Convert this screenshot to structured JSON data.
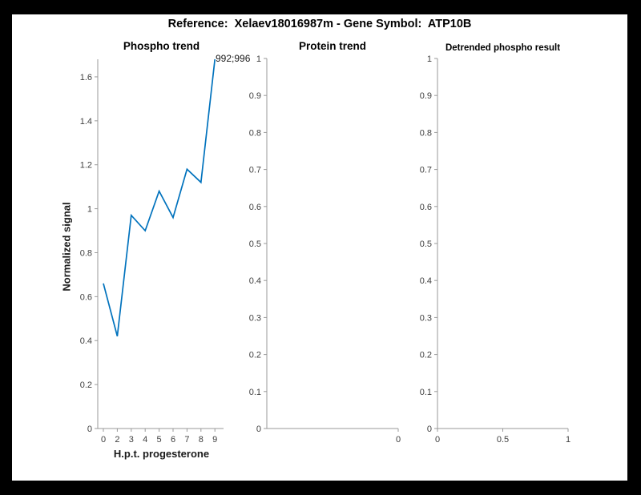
{
  "figure_title": "Reference:  Xelaev18016987m - Gene Symbol:  ATP10B",
  "colors": {
    "line_blue": "#0072BD",
    "axis_gray": "#999999",
    "tick_text_gray": "#3f3f3f",
    "frame_black": "#000000",
    "figure_background": "#ffffff"
  },
  "chart_data": [
    {
      "type": "line",
      "title": "Phospho trend",
      "xlabel": "H.p.t. progesterone",
      "ylabel": "Normalized signal",
      "categories": [
        "0",
        "2",
        "3",
        "4",
        "5",
        "6",
        "7",
        "8",
        "9"
      ],
      "x_tick_labels": [
        "0",
        "2",
        "3",
        "4",
        "5",
        "6",
        "7",
        "8",
        "9"
      ],
      "values": [
        0.66,
        0.42,
        0.97,
        0.9,
        1.08,
        0.96,
        1.18,
        1.12,
        1.68
      ],
      "y_ticks": [
        0,
        0.2,
        0.4,
        0.6,
        0.8,
        1,
        1.2,
        1.4,
        1.6
      ],
      "y_tick_labels": [
        "0",
        "0.2",
        "0.4",
        "0.6",
        "0.8",
        "1",
        "1.2",
        "1.4",
        "1.6"
      ],
      "ylim": [
        0,
        1.68
      ],
      "annotation": "992;996",
      "line_color": "#0072BD",
      "grid": false,
      "legend": "none"
    },
    {
      "type": "line",
      "title": "Protein trend",
      "xlabel": "",
      "ylabel": "",
      "x_tick_labels": [
        "0"
      ],
      "values": [],
      "y_ticks": [
        0,
        0.1,
        0.2,
        0.3,
        0.4,
        0.5,
        0.6,
        0.7,
        0.8,
        0.9,
        1
      ],
      "y_tick_labels": [
        "0",
        "0.1",
        "0.2",
        "0.3",
        "0.4",
        "0.5",
        "0.6",
        "0.7",
        "0.8",
        "0.9",
        "1"
      ],
      "ylim": [
        0,
        1
      ],
      "grid": false,
      "legend": "none"
    },
    {
      "type": "line",
      "title": "Detrended phospho result",
      "xlabel": "",
      "ylabel": "",
      "x_tick_labels": [
        "0",
        "0.5",
        "1"
      ],
      "values": [],
      "y_ticks": [
        0,
        0.1,
        0.2,
        0.3,
        0.4,
        0.5,
        0.6,
        0.7,
        0.8,
        0.9,
        1
      ],
      "y_tick_labels": [
        "0",
        "0.1",
        "0.2",
        "0.3",
        "0.4",
        "0.5",
        "0.6",
        "0.7",
        "0.8",
        "0.9",
        "1"
      ],
      "ylim": [
        0,
        1
      ],
      "grid": false,
      "legend": "none"
    }
  ]
}
